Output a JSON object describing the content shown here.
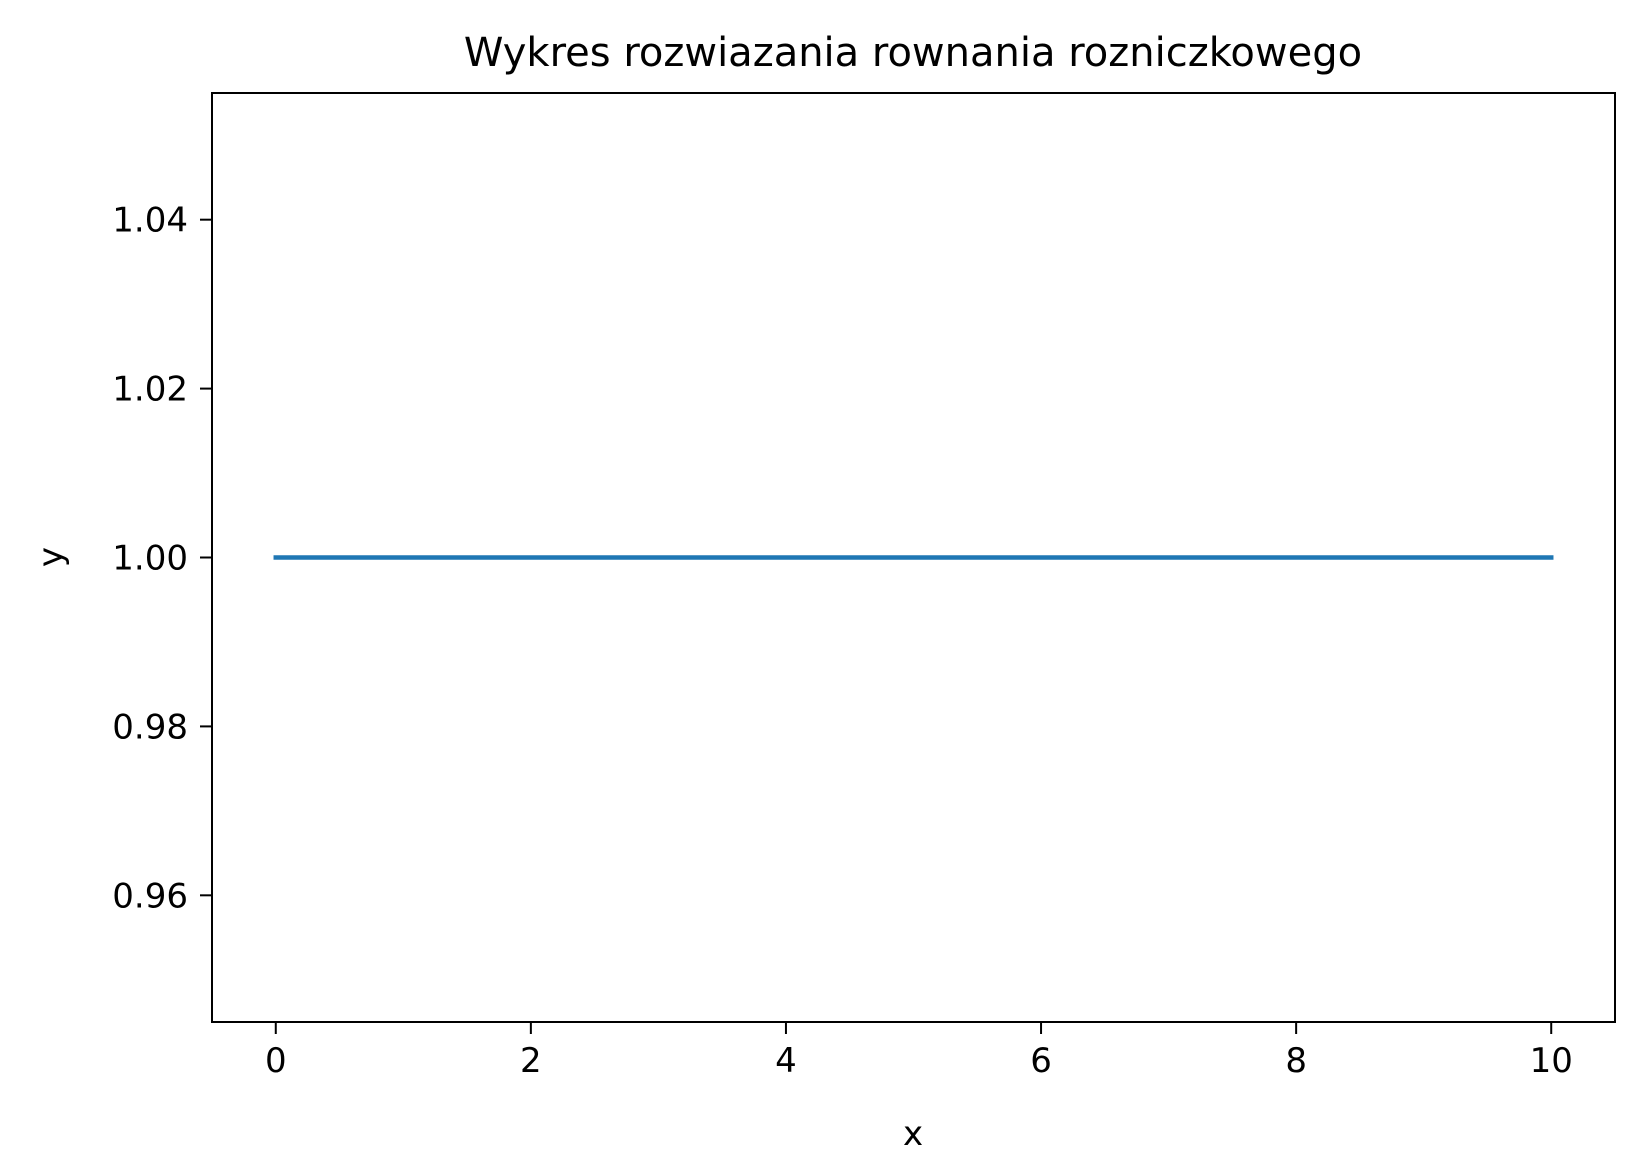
{
  "chart_data": {
    "type": "line",
    "title": "Wykres rozwiazania rownania rozniczkowego",
    "xlabel": "x",
    "ylabel": "y",
    "xlim": [
      -0.5,
      10.5
    ],
    "ylim": [
      0.945,
      1.055
    ],
    "x_ticks": [
      0,
      2,
      4,
      6,
      8,
      10
    ],
    "x_tick_labels": [
      "0",
      "2",
      "4",
      "6",
      "8",
      "10"
    ],
    "y_ticks": [
      0.96,
      0.98,
      1.0,
      1.02,
      1.04
    ],
    "y_tick_labels": [
      "0.96",
      "0.98",
      "1.00",
      "1.02",
      "1.04"
    ],
    "grid": false,
    "series": [
      {
        "color": "#1f77b4",
        "x": [
          0,
          10
        ],
        "y": [
          1.0,
          1.0
        ]
      }
    ]
  }
}
